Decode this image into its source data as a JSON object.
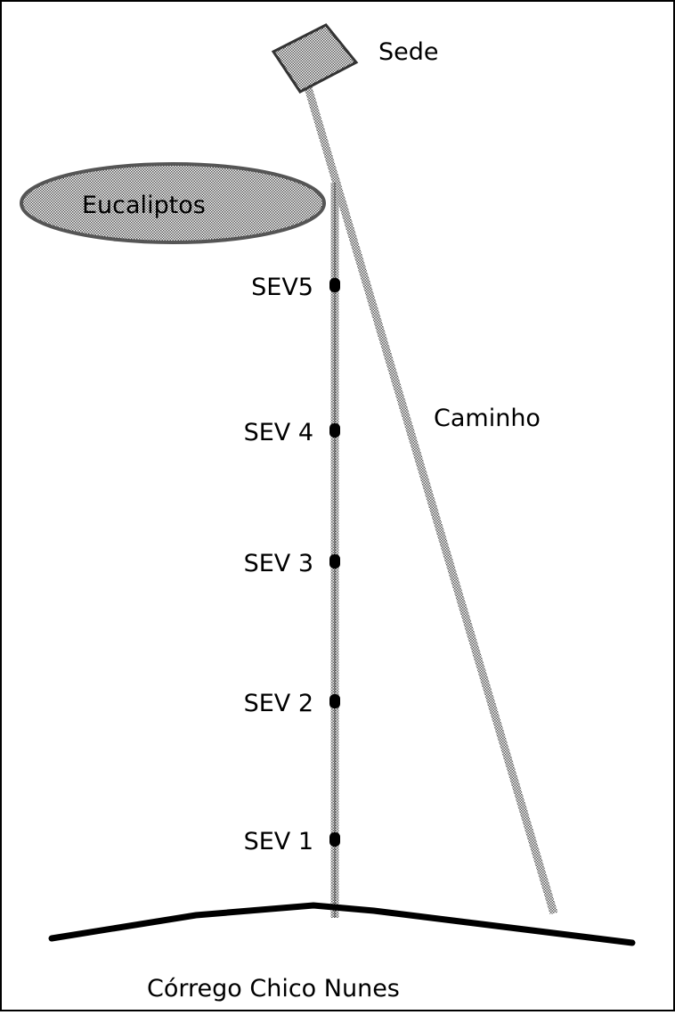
{
  "labels": {
    "sede": "Sede",
    "eucaliptos": "Eucaliptos",
    "caminho": "Caminho",
    "corrego": "Córrego Chico Nunes"
  },
  "points": [
    "SEV5",
    "SEV 4",
    "SEV 3",
    "SEV 2",
    "SEV 1"
  ]
}
